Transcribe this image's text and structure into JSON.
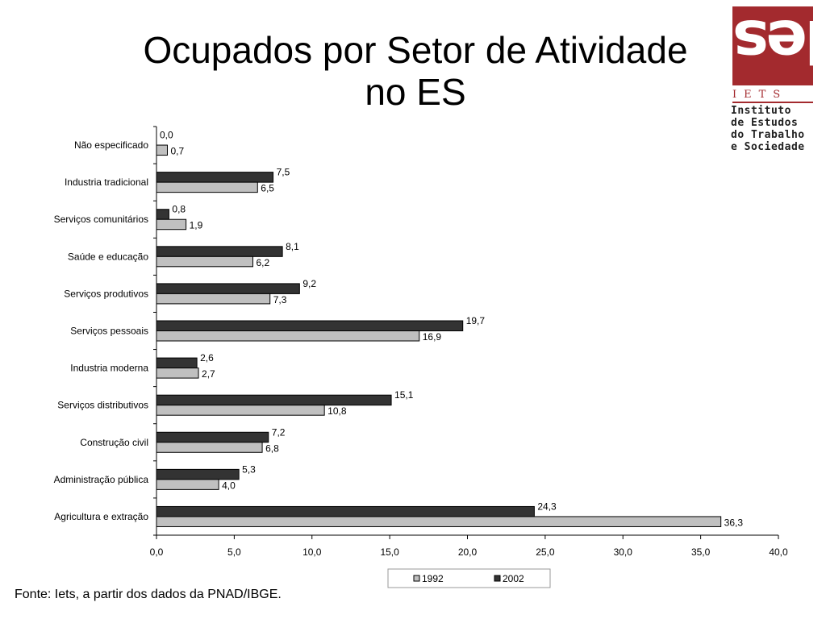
{
  "title_line1": "Ocupados por Setor de Atividade",
  "title_line2": "no ES",
  "source": "Fonte: Iets, a partir dos dados da PNAD/IBGE.",
  "logo": {
    "abbr": "IETS",
    "name_lines": [
      "Instituto",
      "de Estudos",
      "do Trabalho",
      "e Sociedade"
    ],
    "color": "#a32a2e"
  },
  "chart_data": {
    "type": "bar",
    "orientation": "horizontal",
    "categories": [
      "Não especificado",
      "Industria tradicional",
      "Serviços comunitários",
      "Saúde e educação",
      "Serviços produtivos",
      "Serviços pessoais",
      "Industria moderna",
      "Serviços distributivos",
      "Construção civil",
      "Administração pública",
      "Agricultura e extração"
    ],
    "series": [
      {
        "name": "1992",
        "color": "#c0c0c0",
        "values": [
          0.7,
          6.5,
          1.9,
          6.2,
          7.3,
          16.9,
          2.7,
          10.8,
          6.8,
          4.0,
          36.3
        ],
        "labels": [
          "0,7",
          "6,5",
          "1,9",
          "6,2",
          "7,3",
          "16,9",
          "2,7",
          "10,8",
          "6,8",
          "4,0",
          "36,3"
        ]
      },
      {
        "name": "2002",
        "color": "#333333",
        "values": [
          0.0,
          7.5,
          0.8,
          8.1,
          9.2,
          19.7,
          2.6,
          15.1,
          7.2,
          5.3,
          24.3
        ],
        "labels": [
          "0,0",
          "7,5",
          "0,8",
          "8,1",
          "9,2",
          "19,7",
          "2,6",
          "15,1",
          "7,2",
          "5,3",
          "24,3"
        ]
      }
    ],
    "xlim": [
      0,
      40
    ],
    "xticks": [
      0,
      5,
      10,
      15,
      20,
      25,
      30,
      35,
      40
    ],
    "xtick_labels": [
      "0,0",
      "5,0",
      "10,0",
      "15,0",
      "20,0",
      "25,0",
      "30,0",
      "35,0",
      "40,0"
    ],
    "grid": false,
    "legend_position": "bottom"
  }
}
